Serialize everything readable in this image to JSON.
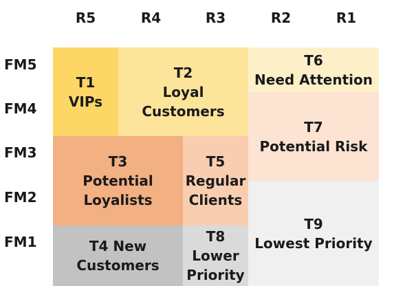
{
  "columns": [
    "R5",
    "R4",
    "R3",
    "R2",
    "R1"
  ],
  "rows": [
    "FM5",
    "FM4",
    "FM3",
    "FM2",
    "FM1"
  ],
  "segments": [
    {
      "lines": [
        "T1",
        "VIPs"
      ],
      "color": "#fcd766"
    },
    {
      "lines": [
        "T2",
        "Loyal",
        "Customers"
      ],
      "color": "#fde49b"
    },
    {
      "lines": [
        "T6",
        "Need Attention"
      ],
      "color": "#fdf0c9"
    },
    {
      "lines": [
        "T7",
        "Potential Risk"
      ],
      "color": "#fce3d2"
    },
    {
      "lines": [
        "T3",
        "Potential",
        "Loyalists"
      ],
      "color": "#f2b083"
    },
    {
      "lines": [
        "T5",
        "Regular",
        "Clients"
      ],
      "color": "#f9cdb0"
    },
    {
      "lines": [
        "T9",
        "Lowest Priority"
      ],
      "color": "#f0f0f0"
    },
    {
      "lines": [
        "T4 New",
        "Customers"
      ],
      "color": "#c2c2c2"
    },
    {
      "lines": [
        "T8",
        "Lower",
        "Priority"
      ],
      "color": "#dadada"
    }
  ]
}
